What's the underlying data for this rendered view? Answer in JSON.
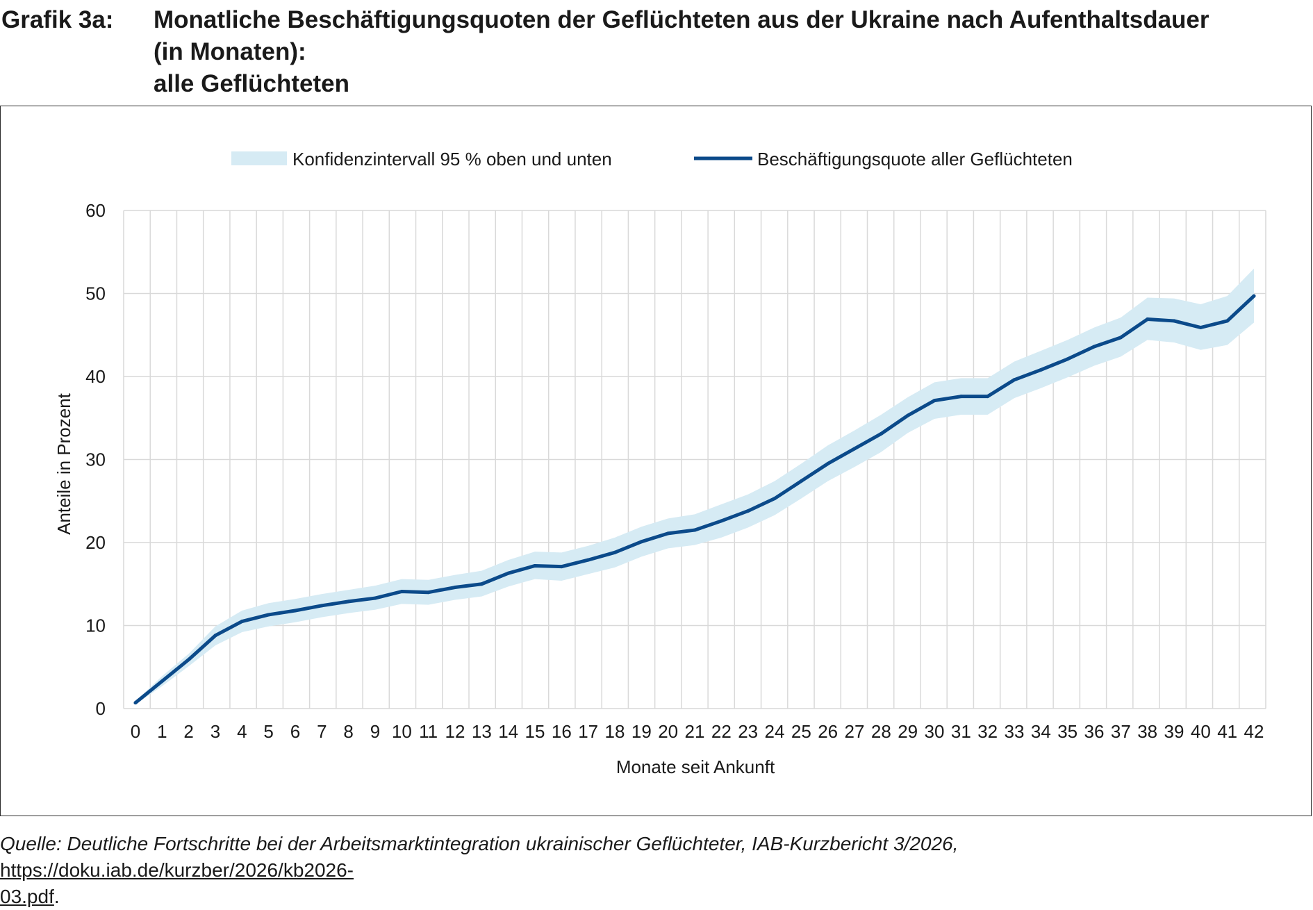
{
  "header": {
    "label": "Grafik 3a:",
    "title_lines": [
      "Monatliche Beschäftigungsquoten der Geflüchteten aus der Ukraine nach Aufenthaltsdauer",
      "(in Monaten):",
      "alle Geflüchteten"
    ]
  },
  "legend": {
    "band_label": "Konfidenzintervall 95 % oben und unten",
    "line_label": "Beschäftigungsquote aller Geflüchteten"
  },
  "colors": {
    "line": "#0b4a8a",
    "band": "#d6ebf4",
    "grid": "#d9d9d9",
    "axis": "#bfbfbf"
  },
  "chart_data": {
    "type": "line",
    "title": "Monatliche Beschäftigungsquoten der Geflüchteten aus der Ukraine nach Aufenthaltsdauer (in Monaten): alle Geflüchteten",
    "xlabel": "Monate seit Ankunft",
    "ylabel": "Anteile in Prozent",
    "ylim": [
      0,
      60
    ],
    "yticks": [
      0,
      10,
      20,
      30,
      40,
      50,
      60
    ],
    "x": [
      0,
      1,
      2,
      3,
      4,
      5,
      6,
      7,
      8,
      9,
      10,
      11,
      12,
      13,
      14,
      15,
      16,
      17,
      18,
      19,
      20,
      21,
      22,
      23,
      24,
      25,
      26,
      27,
      28,
      29,
      30,
      31,
      32,
      33,
      34,
      35,
      36,
      37,
      38,
      39,
      40,
      41,
      42
    ],
    "grid": true,
    "legend_position": "top",
    "series": [
      {
        "name": "Beschäftigungsquote aller Geflüchteten",
        "values": [
          0.7,
          3.3,
          5.9,
          8.8,
          10.5,
          11.3,
          11.8,
          12.4,
          12.9,
          13.3,
          14.1,
          14.0,
          14.6,
          15.0,
          16.3,
          17.2,
          17.1,
          17.9,
          18.8,
          20.1,
          21.1,
          21.5,
          22.6,
          23.8,
          25.3,
          27.4,
          29.5,
          31.3,
          33.1,
          35.3,
          37.1,
          37.6,
          37.6,
          39.6,
          40.8,
          42.1,
          43.6,
          44.7,
          46.9,
          46.7,
          45.9,
          46.7,
          49.7
        ]
      },
      {
        "name": "Konfidenzintervall 95 % oben und unten",
        "upper": [
          0.9,
          3.9,
          6.6,
          9.9,
          11.8,
          12.7,
          13.2,
          13.8,
          14.3,
          14.8,
          15.6,
          15.5,
          16.1,
          16.6,
          17.9,
          18.9,
          18.8,
          19.6,
          20.6,
          21.9,
          22.9,
          23.4,
          24.6,
          25.8,
          27.4,
          29.5,
          31.7,
          33.5,
          35.4,
          37.5,
          39.3,
          39.8,
          39.8,
          41.8,
          43.1,
          44.4,
          45.9,
          47.1,
          49.5,
          49.4,
          48.7,
          49.7,
          53.0
        ],
        "lower": [
          0.5,
          2.7,
          5.1,
          7.6,
          9.2,
          9.9,
          10.4,
          11.0,
          11.5,
          11.9,
          12.6,
          12.5,
          13.1,
          13.5,
          14.7,
          15.6,
          15.4,
          16.2,
          17.0,
          18.3,
          19.3,
          19.7,
          20.6,
          21.8,
          23.3,
          25.3,
          27.4,
          29.1,
          30.9,
          33.2,
          34.9,
          35.4,
          35.4,
          37.4,
          38.6,
          39.9,
          41.3,
          42.4,
          44.4,
          44.1,
          43.2,
          43.8,
          46.5
        ]
      }
    ]
  },
  "source": {
    "text": "Quelle: Deutliche Fortschritte bei der Arbeitsmarktintegration ukrainischer Geflüchteter, IAB-Kurzbericht 3/2026,",
    "link_line1": "https://doku.iab.de/kurzber/2026/kb2026-",
    "link_line2": "03.pdf",
    "trailing": "."
  }
}
